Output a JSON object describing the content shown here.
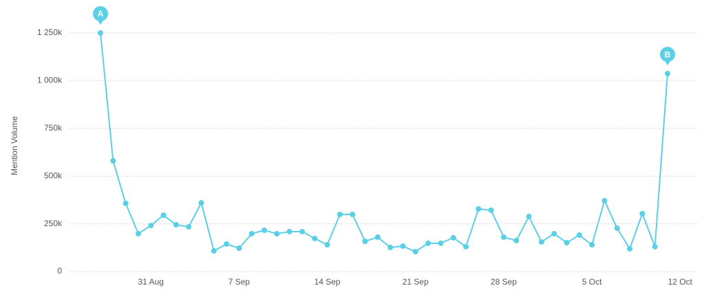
{
  "chart_data": {
    "type": "line",
    "y_label": "Mention Volume",
    "color": "#5bcfe6",
    "grid": true,
    "categories": [
      null,
      null,
      null,
      null,
      "31 Aug",
      null,
      null,
      null,
      null,
      null,
      null,
      "7 Sep",
      null,
      null,
      null,
      null,
      null,
      null,
      "14 Sep",
      null,
      null,
      null,
      null,
      null,
      null,
      "21 Sep",
      null,
      null,
      null,
      null,
      null,
      null,
      "28 Sep",
      null,
      null,
      null,
      null,
      null,
      null,
      "5 Oct",
      null,
      null,
      null,
      null,
      null,
      null,
      "12 Oct"
    ],
    "values": [
      1250000,
      580000,
      357000,
      198000,
      241000,
      295000,
      245000,
      234000,
      360000,
      108000,
      144000,
      122000,
      198000,
      216000,
      198000,
      209000,
      209000,
      173000,
      140000,
      299000,
      299000,
      158000,
      180000,
      126000,
      133000,
      104000,
      148000,
      148000,
      177000,
      130000,
      328000,
      321000,
      180000,
      162000,
      288000,
      155000,
      198000,
      151000,
      191000,
      140000,
      371000,
      227000,
      119000,
      303000,
      130000,
      1037000,
      null
    ],
    "point_labels": [
      "A",
      null,
      null,
      null,
      null,
      null,
      null,
      null,
      null,
      null,
      null,
      null,
      null,
      null,
      null,
      null,
      null,
      null,
      null,
      null,
      null,
      null,
      null,
      null,
      null,
      null,
      null,
      null,
      null,
      null,
      null,
      null,
      null,
      null,
      null,
      null,
      null,
      null,
      null,
      null,
      null,
      null,
      null,
      null,
      null,
      "B",
      null
    ],
    "ylim": [
      0,
      1250000
    ],
    "yticks": [
      {
        "value": 0,
        "label": "0"
      },
      {
        "value": 250000,
        "label": "250k"
      },
      {
        "value": 500000,
        "label": "500k"
      },
      {
        "value": 750000,
        "label": "750k"
      },
      {
        "value": 1000000,
        "label": "1 000k"
      },
      {
        "value": 1250000,
        "label": "1 250k"
      }
    ]
  }
}
